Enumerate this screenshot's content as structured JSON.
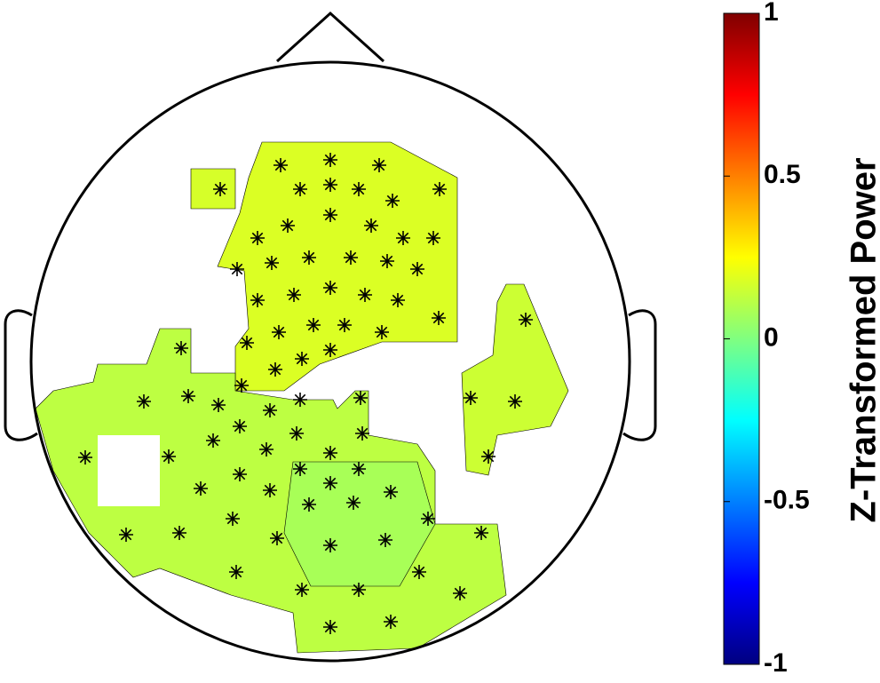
{
  "chart_data": {
    "type": "topoplot",
    "colorbar_label": "Z-Transformed Power",
    "colormap": "jet",
    "clim": [
      -1,
      1
    ],
    "cticks": [
      -1,
      -0.5,
      0,
      0.5,
      1
    ],
    "values": [
      0.18,
      0.17,
      0.12,
      0.08,
      0.15
    ]
  }
}
